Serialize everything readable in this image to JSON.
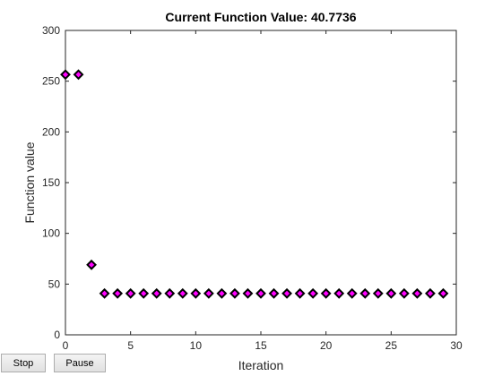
{
  "buttons": {
    "stop_label": "Stop",
    "pause_label": "Pause"
  },
  "chart_data": {
    "type": "scatter",
    "title": "Current Function Value: 40.7736",
    "xlabel": "Iteration",
    "ylabel": "Function value",
    "xlim": [
      0,
      30
    ],
    "ylim": [
      0,
      300
    ],
    "xticks": [
      0,
      5,
      10,
      15,
      20,
      25,
      30
    ],
    "yticks": [
      0,
      50,
      100,
      150,
      200,
      250,
      300
    ],
    "grid": false,
    "marker": "diamond",
    "marker_face_color": "#ff00ff",
    "marker_edge_color": "#000000",
    "x": [
      0,
      1,
      2,
      3,
      4,
      5,
      6,
      7,
      8,
      9,
      10,
      11,
      12,
      13,
      14,
      15,
      16,
      17,
      18,
      19,
      20,
      21,
      22,
      23,
      24,
      25,
      26,
      27,
      28,
      29
    ],
    "values": [
      256.5,
      256.5,
      69,
      40.7736,
      40.7736,
      40.7736,
      40.7736,
      40.7736,
      40.7736,
      40.7736,
      40.7736,
      40.7736,
      40.7736,
      40.7736,
      40.7736,
      40.7736,
      40.7736,
      40.7736,
      40.7736,
      40.7736,
      40.7736,
      40.7736,
      40.7736,
      40.7736,
      40.7736,
      40.7736,
      40.7736,
      40.7736,
      40.7736,
      40.7736
    ]
  }
}
